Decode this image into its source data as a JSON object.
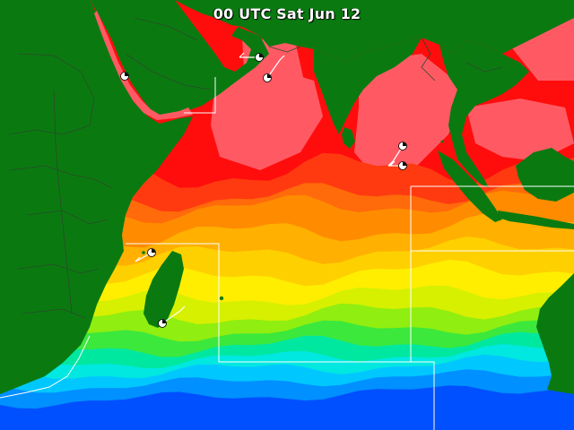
{
  "map": {
    "title": "00 UTC Sat Jun 12",
    "land_color": "#0a7a10",
    "border_color": "#2b4a2b",
    "sst_bands": [
      {
        "level": "band-1",
        "color": "#e2003c"
      },
      {
        "level": "band-2",
        "color": "#ff5a64"
      },
      {
        "level": "band-3",
        "color": "#ff0d0d"
      },
      {
        "level": "band-4",
        "color": "#ff3a10"
      },
      {
        "level": "band-5",
        "color": "#ff6a0a"
      },
      {
        "level": "band-6",
        "color": "#ff8c00"
      },
      {
        "level": "band-7",
        "color": "#ffb000"
      },
      {
        "level": "band-8",
        "color": "#ffd000"
      },
      {
        "level": "band-9",
        "color": "#ffee00"
      },
      {
        "level": "band-10",
        "color": "#d6f000"
      },
      {
        "level": "band-11",
        "color": "#90ee10"
      },
      {
        "level": "band-12",
        "color": "#3ce83c"
      },
      {
        "level": "band-13",
        "color": "#00e8a0"
      },
      {
        "level": "band-14",
        "color": "#00e8e0"
      },
      {
        "level": "band-15",
        "color": "#00c8ff"
      },
      {
        "level": "band-16",
        "color": "#0090ff"
      },
      {
        "level": "band-17",
        "color": "#0050ff"
      }
    ],
    "station_marker": "station-model-icon",
    "region_outline_color": "#ffffff"
  }
}
